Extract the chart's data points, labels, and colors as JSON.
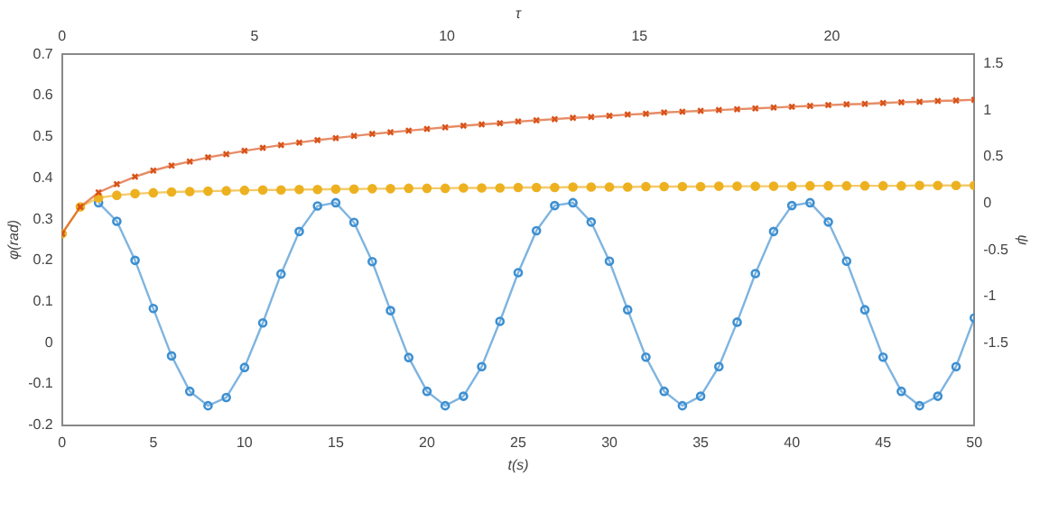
{
  "chart_data": {
    "type": "line",
    "xlabel": "t(s)",
    "ylabel": "φ(rad)",
    "x2label": "τ",
    "y2label": "ψ",
    "x": [
      0,
      1,
      2,
      3,
      4,
      5,
      6,
      7,
      8,
      9,
      10,
      11,
      12,
      13,
      14,
      15,
      16,
      17,
      18,
      19,
      20,
      21,
      22,
      23,
      24,
      25,
      26,
      27,
      28,
      29,
      30,
      31,
      32,
      33,
      34,
      35,
      36,
      37,
      38,
      39,
      40,
      41,
      42,
      43,
      44,
      45,
      46,
      47,
      48,
      49,
      50
    ],
    "xlim": [
      0,
      50
    ],
    "xticks": [
      0,
      5,
      10,
      15,
      20,
      25,
      30,
      35,
      40,
      45,
      50
    ],
    "ylim": [
      -0.2,
      0.7
    ],
    "yticks": [
      -0.2,
      -0.1,
      0,
      0.1,
      0.2,
      0.3,
      0.4,
      0.5,
      0.6,
      0.7
    ],
    "x2lim": [
      0,
      23.7
    ],
    "x2ticks": [
      0,
      5,
      10,
      15,
      20
    ],
    "y2lim": [
      -2.38,
      1.6
    ],
    "y2ticks": [
      -1.5,
      -1,
      -0.5,
      0,
      0.5,
      1,
      1.5
    ],
    "grid": false,
    "legend": false,
    "line_style": "solid",
    "series": [
      {
        "color": "#d95319",
        "marker": "cross",
        "values": [
          0.265,
          0.33,
          0.365,
          0.385,
          0.403,
          0.418,
          0.43,
          0.44,
          0.45,
          0.458,
          0.466,
          0.473,
          0.48,
          0.486,
          0.492,
          0.497,
          0.502,
          0.507,
          0.511,
          0.515,
          0.519,
          0.523,
          0.527,
          0.53,
          0.533,
          0.537,
          0.54,
          0.543,
          0.546,
          0.548,
          0.551,
          0.554,
          0.556,
          0.559,
          0.561,
          0.563,
          0.565,
          0.567,
          0.569,
          0.571,
          0.573,
          0.575,
          0.577,
          0.579,
          0.58,
          0.582,
          0.584,
          0.585,
          0.587,
          0.588,
          0.59
        ]
      },
      {
        "color": "#edb120",
        "marker": "circle",
        "values": [
          0.265,
          0.33,
          0.352,
          0.358,
          0.362,
          0.364,
          0.366,
          0.367,
          0.368,
          0.369,
          0.37,
          0.371,
          0.371,
          0.372,
          0.372,
          0.373,
          0.373,
          0.374,
          0.374,
          0.375,
          0.375,
          0.375,
          0.376,
          0.376,
          0.376,
          0.377,
          0.377,
          0.377,
          0.378,
          0.378,
          0.378,
          0.378,
          0.379,
          0.379,
          0.379,
          0.379,
          0.38,
          0.38,
          0.38,
          0.38,
          0.38,
          0.381,
          0.381,
          0.381,
          0.381,
          0.381,
          0.381,
          0.382,
          0.382,
          0.382,
          0.382
        ]
      },
      {
        "color": "#3d8fd1",
        "marker": "circle",
        "values": [
          null,
          null,
          0.34,
          0.295,
          0.2,
          0.083,
          -0.032,
          -0.118,
          -0.153,
          -0.133,
          -0.06,
          0.048,
          0.167,
          0.27,
          0.332,
          0.34,
          0.292,
          0.197,
          0.078,
          -0.036,
          -0.118,
          -0.153,
          -0.13,
          -0.058,
          0.052,
          0.17,
          0.272,
          0.333,
          0.34,
          0.293,
          0.198,
          0.08,
          -0.035,
          -0.118,
          -0.153,
          -0.13,
          -0.058,
          0.05,
          0.168,
          0.27,
          0.333,
          0.34,
          0.293,
          0.198,
          0.08,
          -0.035,
          -0.118,
          -0.153,
          -0.13,
          -0.058,
          0.06
        ]
      }
    ]
  }
}
